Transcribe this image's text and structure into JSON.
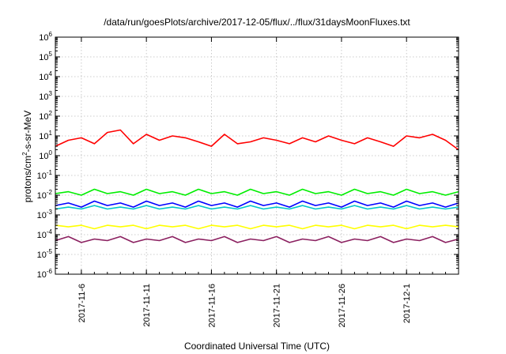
{
  "chart_data": {
    "type": "line",
    "title": "/data/run/goesPlots/archive/2017-12-05/flux/../flux/31daysMoonFluxes.txt",
    "xlabel": "Coordinated Universal Time (UTC)",
    "ylabel": "protons/cm2-s-sr-MeV",
    "ylabel_parts": {
      "pre": "protons/cm",
      "sup": "2",
      "post": "-s-sr-MeV"
    },
    "yscale": "log",
    "ylim": [
      1e-06,
      1000000.0
    ],
    "xlim": [
      "2017-11-04",
      "2017-12-05"
    ],
    "grid": true,
    "x_tick_values": [
      "2017-11-06",
      "2017-11-11",
      "2017-11-16",
      "2017-11-21",
      "2017-11-26",
      "2017-12-01"
    ],
    "x_tick_labels": [
      "2017-11-6",
      "2017-11-11",
      "2017-11-16",
      "2017-11-21",
      "2017-11-26",
      "2017-12-1"
    ],
    "y_tick_base": "10",
    "y_tick_exponents": [
      "-6",
      "-5",
      "-4",
      "-3",
      "-2",
      "-1",
      "0",
      "1",
      "2",
      "3",
      "4",
      "5",
      "6"
    ],
    "y_tick_values": [
      1e-06,
      1e-05,
      0.0001,
      0.001,
      0.01,
      0.1,
      1,
      10,
      100,
      1000,
      10000,
      100000,
      1000000
    ],
    "series": [
      {
        "color": "#ff0000",
        "x": [
          "2017-11-04",
          "2017-11-05",
          "2017-11-06",
          "2017-11-07",
          "2017-11-08",
          "2017-11-09",
          "2017-11-10",
          "2017-11-11",
          "2017-11-12",
          "2017-11-13",
          "2017-11-14",
          "2017-11-15",
          "2017-11-16",
          "2017-11-17",
          "2017-11-18",
          "2017-11-19",
          "2017-11-20",
          "2017-11-21",
          "2017-11-22",
          "2017-11-23",
          "2017-11-24",
          "2017-11-25",
          "2017-11-26",
          "2017-11-27",
          "2017-11-28",
          "2017-11-29",
          "2017-11-30",
          "2017-12-01",
          "2017-12-02",
          "2017-12-03",
          "2017-12-04",
          "2017-12-05"
        ],
        "values": [
          3,
          6,
          8,
          4,
          15,
          20,
          4,
          12,
          6,
          10,
          8,
          5,
          3,
          12,
          4,
          5,
          8,
          6,
          4,
          8,
          5,
          10,
          6,
          4,
          8,
          5,
          3,
          10,
          8,
          12,
          6,
          2
        ]
      },
      {
        "color": "#00ee00",
        "x": [
          "2017-11-04",
          "2017-11-05",
          "2017-11-06",
          "2017-11-07",
          "2017-11-08",
          "2017-11-09",
          "2017-11-10",
          "2017-11-11",
          "2017-11-12",
          "2017-11-13",
          "2017-11-14",
          "2017-11-15",
          "2017-11-16",
          "2017-11-17",
          "2017-11-18",
          "2017-11-19",
          "2017-11-20",
          "2017-11-21",
          "2017-11-22",
          "2017-11-23",
          "2017-11-24",
          "2017-11-25",
          "2017-11-26",
          "2017-11-27",
          "2017-11-28",
          "2017-11-29",
          "2017-11-30",
          "2017-12-01",
          "2017-12-02",
          "2017-12-03",
          "2017-12-04",
          "2017-12-05"
        ],
        "values": [
          0.012,
          0.015,
          0.01,
          0.02,
          0.012,
          0.015,
          0.01,
          0.02,
          0.012,
          0.015,
          0.01,
          0.02,
          0.012,
          0.015,
          0.01,
          0.02,
          0.012,
          0.015,
          0.01,
          0.02,
          0.012,
          0.015,
          0.01,
          0.02,
          0.012,
          0.015,
          0.01,
          0.02,
          0.012,
          0.015,
          0.01,
          0.015
        ]
      },
      {
        "color": "#00c8c8",
        "x": [
          "2017-11-04",
          "2017-11-05",
          "2017-11-06",
          "2017-11-07",
          "2017-11-08",
          "2017-11-09",
          "2017-11-10",
          "2017-11-11",
          "2017-11-12",
          "2017-11-13",
          "2017-11-14",
          "2017-11-15",
          "2017-11-16",
          "2017-11-17",
          "2017-11-18",
          "2017-11-19",
          "2017-11-20",
          "2017-11-21",
          "2017-11-22",
          "2017-11-23",
          "2017-11-24",
          "2017-11-25",
          "2017-11-26",
          "2017-11-27",
          "2017-11-28",
          "2017-11-29",
          "2017-11-30",
          "2017-12-01",
          "2017-12-02",
          "2017-12-03",
          "2017-12-04",
          "2017-12-05"
        ],
        "values": [
          0.002,
          0.0025,
          0.002,
          0.003,
          0.002,
          0.0025,
          0.002,
          0.003,
          0.002,
          0.0025,
          0.002,
          0.003,
          0.002,
          0.0025,
          0.002,
          0.003,
          0.002,
          0.0025,
          0.002,
          0.003,
          0.002,
          0.0025,
          0.002,
          0.003,
          0.002,
          0.0025,
          0.002,
          0.003,
          0.002,
          0.0025,
          0.002,
          0.0025
        ]
      },
      {
        "color": "#0000ff",
        "x": [
          "2017-11-04",
          "2017-11-05",
          "2017-11-06",
          "2017-11-07",
          "2017-11-08",
          "2017-11-09",
          "2017-11-10",
          "2017-11-11",
          "2017-11-12",
          "2017-11-13",
          "2017-11-14",
          "2017-11-15",
          "2017-11-16",
          "2017-11-17",
          "2017-11-18",
          "2017-11-19",
          "2017-11-20",
          "2017-11-21",
          "2017-11-22",
          "2017-11-23",
          "2017-11-24",
          "2017-11-25",
          "2017-11-26",
          "2017-11-27",
          "2017-11-28",
          "2017-11-29",
          "2017-11-30",
          "2017-12-01",
          "2017-12-02",
          "2017-12-03",
          "2017-12-04",
          "2017-12-05"
        ],
        "values": [
          0.003,
          0.004,
          0.0025,
          0.005,
          0.003,
          0.004,
          0.0025,
          0.005,
          0.003,
          0.004,
          0.0025,
          0.005,
          0.003,
          0.004,
          0.0025,
          0.005,
          0.003,
          0.004,
          0.0025,
          0.005,
          0.003,
          0.004,
          0.0025,
          0.005,
          0.003,
          0.004,
          0.0025,
          0.005,
          0.003,
          0.004,
          0.0025,
          0.004
        ]
      },
      {
        "color": "#ffff00",
        "x": [
          "2017-11-04",
          "2017-11-05",
          "2017-11-06",
          "2017-11-07",
          "2017-11-08",
          "2017-11-09",
          "2017-11-10",
          "2017-11-11",
          "2017-11-12",
          "2017-11-13",
          "2017-11-14",
          "2017-11-15",
          "2017-11-16",
          "2017-11-17",
          "2017-11-18",
          "2017-11-19",
          "2017-11-20",
          "2017-11-21",
          "2017-11-22",
          "2017-11-23",
          "2017-11-24",
          "2017-11-25",
          "2017-11-26",
          "2017-11-27",
          "2017-11-28",
          "2017-11-29",
          "2017-11-30",
          "2017-12-01",
          "2017-12-02",
          "2017-12-03",
          "2017-12-04",
          "2017-12-05"
        ],
        "values": [
          0.0003,
          0.00025,
          0.0003,
          0.0002,
          0.0003,
          0.00025,
          0.0003,
          0.0002,
          0.0003,
          0.00025,
          0.0003,
          0.0002,
          0.0003,
          0.00025,
          0.0003,
          0.0002,
          0.0003,
          0.00025,
          0.0003,
          0.0002,
          0.0003,
          0.00025,
          0.0003,
          0.0002,
          0.0003,
          0.00025,
          0.0003,
          0.0002,
          0.0003,
          0.00025,
          0.0003,
          0.00025
        ]
      },
      {
        "color": "#8b2060",
        "x": [
          "2017-11-04",
          "2017-11-05",
          "2017-11-06",
          "2017-11-07",
          "2017-11-08",
          "2017-11-09",
          "2017-11-10",
          "2017-11-11",
          "2017-11-12",
          "2017-11-13",
          "2017-11-14",
          "2017-11-15",
          "2017-11-16",
          "2017-11-17",
          "2017-11-18",
          "2017-11-19",
          "2017-11-20",
          "2017-11-21",
          "2017-11-22",
          "2017-11-23",
          "2017-11-24",
          "2017-11-25",
          "2017-11-26",
          "2017-11-27",
          "2017-11-28",
          "2017-11-29",
          "2017-11-30",
          "2017-12-01",
          "2017-12-02",
          "2017-12-03",
          "2017-12-04",
          "2017-12-05"
        ],
        "values": [
          5e-05,
          8e-05,
          4e-05,
          6e-05,
          5e-05,
          8e-05,
          4e-05,
          6e-05,
          5e-05,
          8e-05,
          4e-05,
          6e-05,
          5e-05,
          8e-05,
          4e-05,
          6e-05,
          5e-05,
          8e-05,
          4e-05,
          6e-05,
          5e-05,
          8e-05,
          4e-05,
          6e-05,
          5e-05,
          8e-05,
          4e-05,
          6e-05,
          5e-05,
          8e-05,
          4e-05,
          6e-05
        ]
      }
    ]
  }
}
